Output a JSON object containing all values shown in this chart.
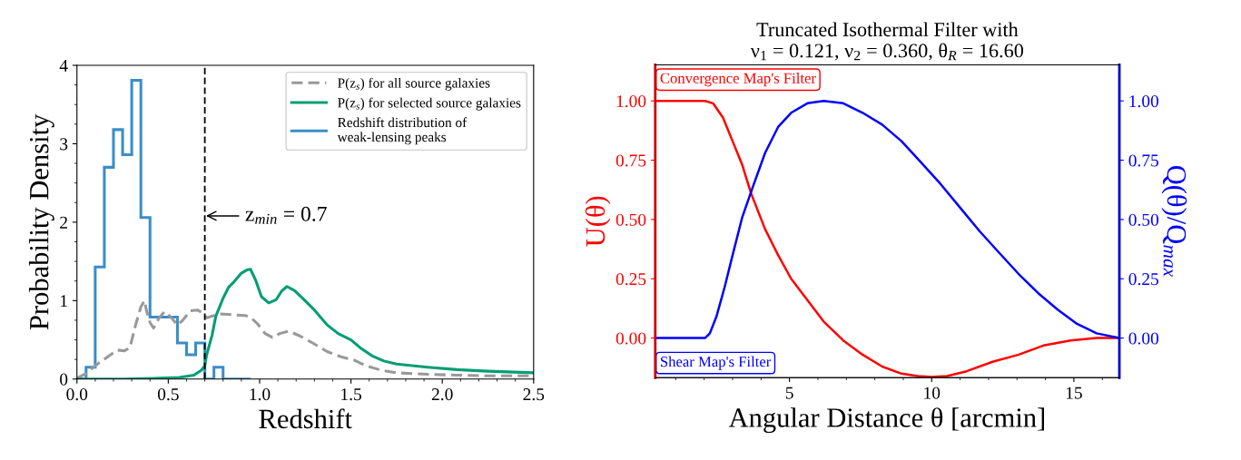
{
  "chart_data": [
    {
      "type": "line",
      "xlabel": "Redshift",
      "ylabel": "Probability Density",
      "xlim": [
        0,
        2.5
      ],
      "ylim": [
        0,
        4
      ],
      "xticks": [
        {
          "value": 0,
          "label": "0.0"
        },
        {
          "value": 0.5,
          "label": "0.5"
        },
        {
          "value": 1,
          "label": "1.0"
        },
        {
          "value": 1.5,
          "label": "1.5"
        },
        {
          "value": 2,
          "label": "2.0"
        },
        {
          "value": 2.5,
          "label": "2.5"
        }
      ],
      "yticks": [
        0,
        1,
        2,
        3,
        4
      ],
      "legend": "top right",
      "grid": false,
      "ref_lines": [
        {
          "axis": "x",
          "value": 0.7,
          "label": "z$_{min}$ = 0.7",
          "color": "#000000",
          "line_style": "dashed"
        }
      ],
      "series": [
        {
          "name": "P(z$_{s}$) for all source galaxies",
          "type": "line",
          "line_style": "dashed",
          "color": "#999999",
          "x": [
            0,
            0.05,
            0.1,
            0.16,
            0.22,
            0.26,
            0.29,
            0.32,
            0.35,
            0.37,
            0.38,
            0.4,
            0.42,
            0.45,
            0.48,
            0.51,
            0.55,
            0.58,
            0.62,
            0.66,
            0.69,
            0.71,
            0.75,
            0.79,
            0.85,
            0.92,
            0.95,
            0.99,
            1.03,
            1.07,
            1.11,
            1.16,
            1.22,
            1.29,
            1.37,
            1.45,
            1.52,
            1.58,
            1.67,
            1.75,
            1.92,
            2.08,
            2.25,
            2.5
          ],
          "values": [
            0.01,
            0.07,
            0.17,
            0.27,
            0.37,
            0.36,
            0.4,
            0.68,
            0.92,
            1.0,
            0.88,
            0.72,
            0.65,
            0.78,
            0.86,
            0.8,
            0.69,
            0.75,
            0.87,
            0.88,
            0.84,
            0.78,
            0.81,
            0.83,
            0.82,
            0.81,
            0.79,
            0.7,
            0.58,
            0.53,
            0.58,
            0.61,
            0.55,
            0.46,
            0.35,
            0.28,
            0.24,
            0.17,
            0.11,
            0.08,
            0.06,
            0.05,
            0.04,
            0.04
          ]
        },
        {
          "name": "P(z$_{s}$) for selected source galaxies",
          "type": "line",
          "line_style": "solid",
          "color": "#029e73",
          "x": [
            0,
            0.26,
            0.42,
            0.56,
            0.64,
            0.68,
            0.7,
            0.71,
            0.74,
            0.76,
            0.8,
            0.83,
            0.86,
            0.9,
            0.93,
            0.95,
            0.98,
            1.01,
            1.05,
            1.09,
            1.12,
            1.15,
            1.19,
            1.24,
            1.3,
            1.37,
            1.43,
            1.5,
            1.55,
            1.62,
            1.68,
            1.75,
            1.92,
            2.08,
            2.25,
            2.5
          ],
          "values": [
            0,
            0,
            0.01,
            0.02,
            0.05,
            0.11,
            0.17,
            0.31,
            0.56,
            0.8,
            1.03,
            1.17,
            1.24,
            1.35,
            1.39,
            1.4,
            1.25,
            1.05,
            0.97,
            1.01,
            1.12,
            1.18,
            1.13,
            1.02,
            0.88,
            0.69,
            0.58,
            0.5,
            0.4,
            0.29,
            0.23,
            0.19,
            0.15,
            0.12,
            0.1,
            0.08
          ]
        },
        {
          "name": "Redshift distribution of\nweak-lensing peaks",
          "type": "histogram",
          "color": "#3a8ec8",
          "bins": [
            0,
            0.05,
            0.1,
            0.15,
            0.2,
            0.25,
            0.3,
            0.35,
            0.4,
            0.45,
            0.5,
            0.55,
            0.6,
            0.65,
            0.7,
            0.75,
            0.8,
            0.85,
            0.9,
            0.95
          ],
          "values": [
            0,
            0.15,
            1.43,
            2.7,
            3.18,
            2.86,
            3.81,
            2.06,
            0.79,
            0.79,
            0.79,
            0.46,
            0.31,
            0.46,
            0,
            0.15,
            0,
            0,
            0
          ]
        }
      ]
    },
    {
      "type": "line",
      "title": "Truncated Isothermal Filter with\nν$_{1}$ = 0.121, ν$_{2}$ = 0.360, θ$_{R}$ = 16.60",
      "xlabel": "Angular Distance θ [arcmin]",
      "ylabel": "U(θ)",
      "y2label": "Q(θ)/Q$_{max}$",
      "xlim": [
        0.28,
        16.6
      ],
      "xticks": [
        5,
        10,
        15
      ],
      "ylim": [
        -0.167,
        1.152
      ],
      "y2lim": [
        -0.167,
        1.152
      ],
      "yticks": [
        {
          "value": 0,
          "label": "0.00"
        },
        {
          "value": 0.25,
          "label": "0.25"
        },
        {
          "value": 0.5,
          "label": "0.50"
        },
        {
          "value": 0.75,
          "label": "0.75"
        },
        {
          "value": 1,
          "label": "1.00"
        }
      ],
      "y2ticks": [
        {
          "value": 0,
          "label": "0.00"
        },
        {
          "value": 0.25,
          "label": "0.25"
        },
        {
          "value": 0.5,
          "label": "0.50"
        },
        {
          "value": 0.75,
          "label": "0.75"
        },
        {
          "value": 1,
          "label": "1.00"
        }
      ],
      "grid": false,
      "annotations": [
        "Convergence Map's Filter",
        "Shear Map's Filter"
      ],
      "series": [
        {
          "color": "#ff0000",
          "axis": "y",
          "x": [
            0.28,
            2.03,
            2.31,
            2.66,
            3.0,
            3.34,
            3.65,
            4.14,
            4.6,
            5.06,
            5.63,
            6.2,
            6.89,
            7.57,
            8.26,
            8.94,
            9.51,
            9.99,
            10.54,
            11.23,
            12.14,
            13.06,
            13.97,
            14.89,
            15.8,
            16.6
          ],
          "values": [
            1,
            1,
            0.99,
            0.93,
            0.83,
            0.73,
            0.61,
            0.46,
            0.35,
            0.25,
            0.16,
            0.07,
            -0.01,
            -0.07,
            -0.12,
            -0.15,
            -0.16,
            -0.164,
            -0.16,
            -0.14,
            -0.1,
            -0.07,
            -0.03,
            -0.01,
            0,
            0
          ]
        },
        {
          "color": "#0000ff",
          "axis": "y2",
          "x": [
            0.28,
            2.03,
            2.2,
            2.43,
            2.71,
            3.0,
            3.34,
            3.69,
            4.14,
            4.6,
            5.06,
            5.63,
            6.2,
            6.89,
            7.57,
            8.26,
            8.94,
            9.63,
            10.31,
            11.0,
            11.69,
            12.37,
            13.06,
            13.74,
            14.43,
            15.11,
            15.8,
            16.6
          ],
          "values": [
            0,
            0,
            0.02,
            0.09,
            0.21,
            0.35,
            0.51,
            0.63,
            0.78,
            0.89,
            0.95,
            0.99,
            1.0,
            0.99,
            0.95,
            0.9,
            0.83,
            0.74,
            0.65,
            0.55,
            0.45,
            0.36,
            0.27,
            0.19,
            0.12,
            0.06,
            0.02,
            0
          ]
        }
      ]
    }
  ]
}
